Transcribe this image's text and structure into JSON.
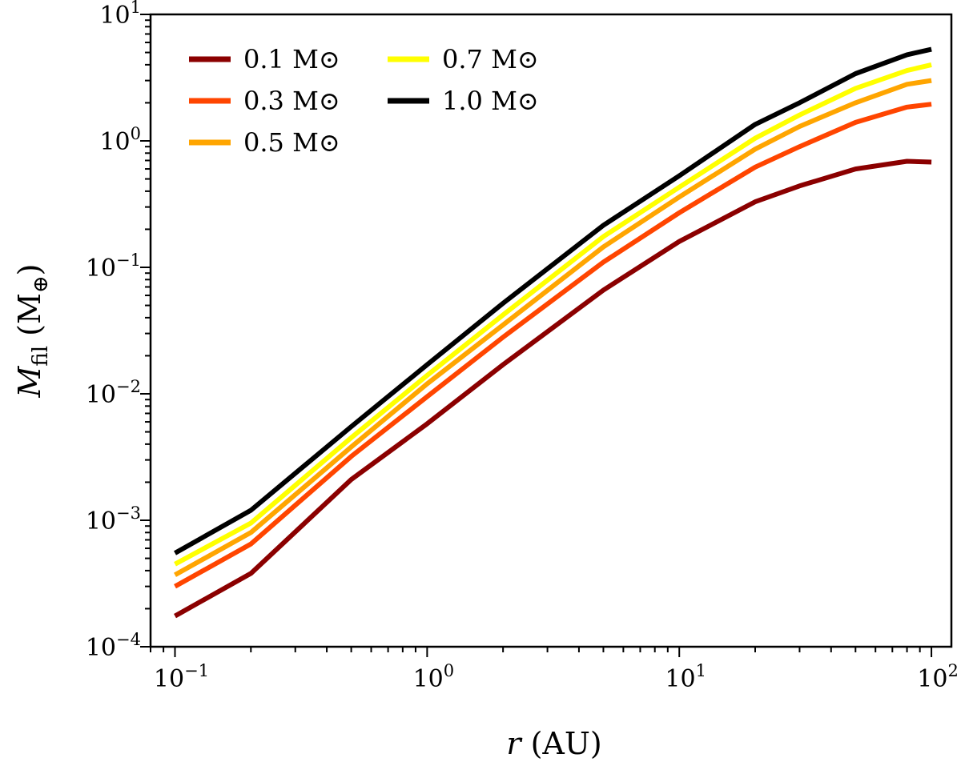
{
  "chart_data": {
    "type": "line",
    "xscale": "log",
    "yscale": "log",
    "xlim": [
      0.08,
      120
    ],
    "ylim": [
      0.0001,
      10
    ],
    "xlabel": {
      "main": "r",
      "unit": " (AU)"
    },
    "ylabel": {
      "main": "M",
      "sub": "fil",
      "unit": " (M",
      "unit_sub": "⊕",
      "close": ")"
    },
    "x_ticks": [
      {
        "value": 0.1,
        "base": "10",
        "exp": "−1"
      },
      {
        "value": 1,
        "base": "10",
        "exp": "0"
      },
      {
        "value": 10,
        "base": "10",
        "exp": "1"
      },
      {
        "value": 100,
        "base": "10",
        "exp": "2"
      }
    ],
    "y_ticks": [
      {
        "value": 0.0001,
        "base": "10",
        "exp": "−4"
      },
      {
        "value": 0.001,
        "base": "10",
        "exp": "−3"
      },
      {
        "value": 0.01,
        "base": "10",
        "exp": "−2"
      },
      {
        "value": 0.1,
        "base": "10",
        "exp": "−1"
      },
      {
        "value": 1,
        "base": "10",
        "exp": "0"
      },
      {
        "value": 10,
        "base": "10",
        "exp": "1"
      }
    ],
    "x": [
      0.1,
      0.2,
      0.5,
      1,
      2,
      5,
      10,
      20,
      30,
      50,
      80,
      100
    ],
    "series": [
      {
        "name": "0.1 M⊙",
        "color": "#8b0000",
        "values": [
          0.000175,
          0.00038,
          0.0021,
          0.0058,
          0.017,
          0.066,
          0.16,
          0.33,
          0.44,
          0.6,
          0.69,
          0.68
        ]
      },
      {
        "name": "0.3 M⊙",
        "color": "#ff4500",
        "values": [
          0.0003,
          0.00065,
          0.0032,
          0.0095,
          0.028,
          0.11,
          0.27,
          0.62,
          0.9,
          1.4,
          1.85,
          1.95
        ]
      },
      {
        "name": "0.5 M⊙",
        "color": "#ffa500",
        "values": [
          0.00037,
          0.0008,
          0.0038,
          0.012,
          0.035,
          0.145,
          0.36,
          0.86,
          1.3,
          2.0,
          2.8,
          3.0
        ]
      },
      {
        "name": "0.7 M⊙",
        "color": "#ffff00",
        "values": [
          0.00045,
          0.00095,
          0.0045,
          0.014,
          0.042,
          0.175,
          0.43,
          1.05,
          1.6,
          2.6,
          3.6,
          4.0
        ]
      },
      {
        "name": "1.0 M⊙",
        "color": "#000000",
        "values": [
          0.00055,
          0.0012,
          0.0055,
          0.017,
          0.052,
          0.215,
          0.53,
          1.35,
          2.0,
          3.4,
          4.8,
          5.3
        ]
      }
    ],
    "legend": {
      "placement": "upper-left",
      "columns": 2
    },
    "grid": false
  }
}
